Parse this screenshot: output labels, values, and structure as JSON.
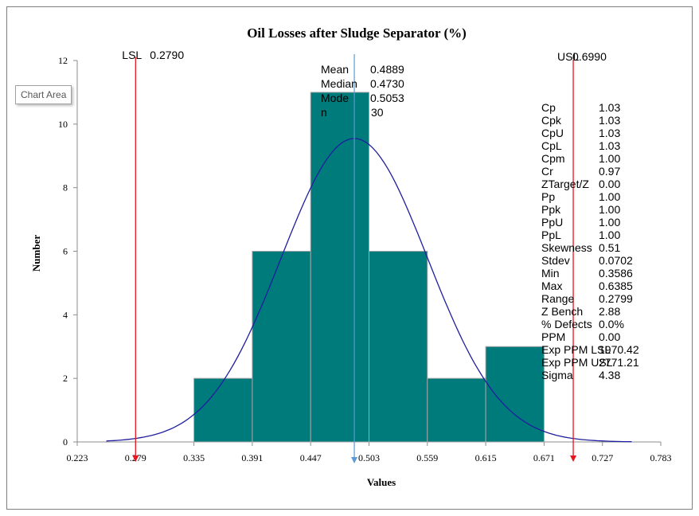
{
  "tooltip": "Chart Area",
  "chart_data": {
    "type": "bar",
    "title": "Oil Losses after Sludge Separator (%)",
    "xlabel": "Values",
    "ylabel": "Number",
    "xlim": [
      0.223,
      0.783
    ],
    "ylim": [
      0,
      12
    ],
    "x_ticks": [
      "0.223",
      "0.279",
      "0.335",
      "0.391",
      "0.447",
      "0.503",
      "0.559",
      "0.615",
      "0.671",
      "0.727",
      "0.783"
    ],
    "y_ticks": [
      "0",
      "2",
      "4",
      "6",
      "8",
      "10",
      "12"
    ],
    "bins": [
      {
        "from": 0.335,
        "to": 0.391,
        "count": 2
      },
      {
        "from": 0.391,
        "to": 0.447,
        "count": 6
      },
      {
        "from": 0.447,
        "to": 0.503,
        "count": 11
      },
      {
        "from": 0.503,
        "to": 0.559,
        "count": 6
      },
      {
        "from": 0.559,
        "to": 0.615,
        "count": 2
      },
      {
        "from": 0.615,
        "to": 0.671,
        "count": 3
      }
    ],
    "bar_color": "#007b7b",
    "curve_color": "#1f1f9f",
    "normal_curve": {
      "mean": 0.4889,
      "stdev": 0.0702,
      "x_from": 0.251,
      "x_to": 0.755
    },
    "spec_lines": [
      {
        "name": "LSL",
        "value_label": "0.2790",
        "value": 0.279,
        "color": "#e8141e"
      },
      {
        "name": "USL",
        "value_label": "0.6990",
        "value": 0.699,
        "color": "#e8141e"
      }
    ],
    "mean_line": {
      "value": 0.4889,
      "color": "#5b9bd5"
    },
    "center_stats": [
      {
        "label": "Mean",
        "value": "0.4889"
      },
      {
        "label": "Median",
        "value": "0.4730"
      },
      {
        "label": "Mode",
        "value": "0.5053"
      },
      {
        "label": "n",
        "value": "30"
      }
    ],
    "right_stats": [
      {
        "label": "Cp",
        "value": "1.03"
      },
      {
        "label": "Cpk",
        "value": "1.03"
      },
      {
        "label": "CpU",
        "value": "1.03"
      },
      {
        "label": "CpL",
        "value": "1.03"
      },
      {
        "label": "Cpm",
        "value": "1.00"
      },
      {
        "label": "Cr",
        "value": "0.97",
        "highlight": true
      },
      {
        "label": "ZTarget/Z",
        "value": "0.00"
      },
      {
        "label": "Pp",
        "value": "1.00"
      },
      {
        "label": "Ppk",
        "value": "1.00"
      },
      {
        "label": "PpU",
        "value": "1.00"
      },
      {
        "label": "PpL",
        "value": "1.00"
      },
      {
        "label": "Skewness",
        "value": "0.51"
      },
      {
        "label": "Stdev",
        "value": "0.0702"
      },
      {
        "label": "Min",
        "value": "0.3586"
      },
      {
        "label": "Max",
        "value": "0.6385"
      },
      {
        "label": "Range",
        "value": "0.2799"
      },
      {
        "label": "Z Bench",
        "value": "2.88"
      },
      {
        "label": "% Defects",
        "value": "0.0%"
      },
      {
        "label": "PPM",
        "value": "0.00"
      },
      {
        "label": "Exp PPM LSL",
        "value": "1970.42"
      },
      {
        "label": "Exp PPM USL",
        "value": "2771.21"
      },
      {
        "label": "Sigma",
        "value": "4.38"
      }
    ],
    "highlight_color": "#ff0000"
  }
}
